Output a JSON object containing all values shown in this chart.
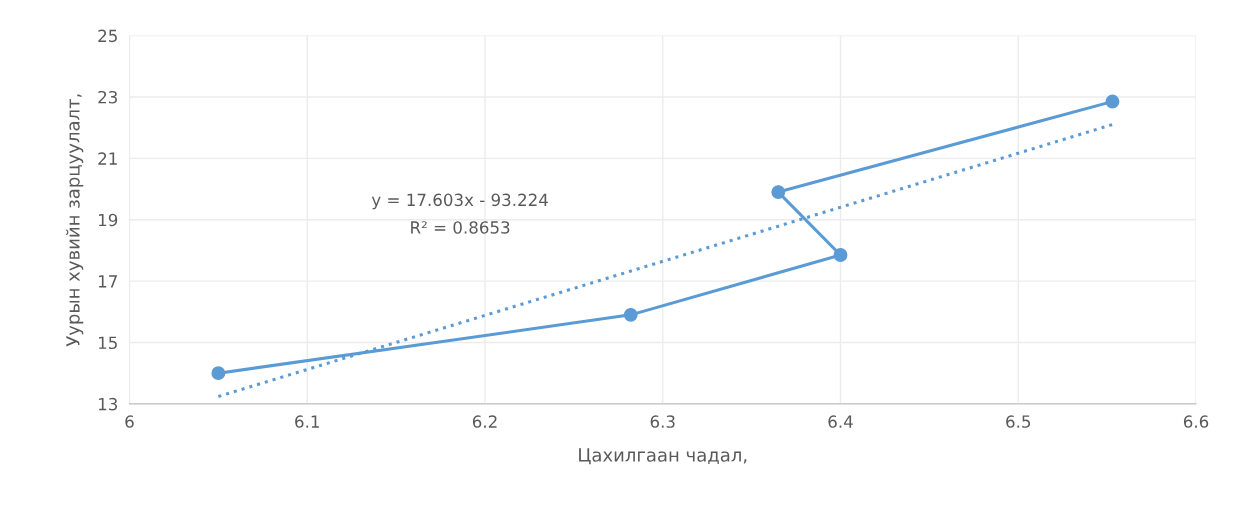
{
  "chart_data": {
    "type": "line",
    "xlabel": "Цахилгаан чадал,",
    "ylabel": "Уурын хувийн зарцуулалт,",
    "series": [
      {
        "color": "#5b9bd5",
        "x": [
          6.05,
          6.282,
          6.4,
          6.365,
          6.553
        ],
        "values": [
          14.0,
          15.9,
          17.85,
          19.9,
          22.85
        ],
        "marker": "circle",
        "line_style": "solid"
      },
      {
        "color": "#5b9bd5",
        "x": [
          6.05,
          6.553
        ],
        "values": [
          13.24,
          22.1
        ],
        "marker": "none",
        "line_style": "dotted"
      }
    ],
    "annotations": [
      "y = 17.603x - 93.224",
      "R² = 0.8653"
    ],
    "xlim": [
      6,
      6.6
    ],
    "xticks": [
      6,
      6.1,
      6.2,
      6.3,
      6.4,
      6.5,
      6.6
    ],
    "ylim": [
      13,
      25
    ],
    "yticks": [
      13,
      15,
      17,
      19,
      21,
      23,
      25
    ],
    "grid": true,
    "legend": false
  }
}
